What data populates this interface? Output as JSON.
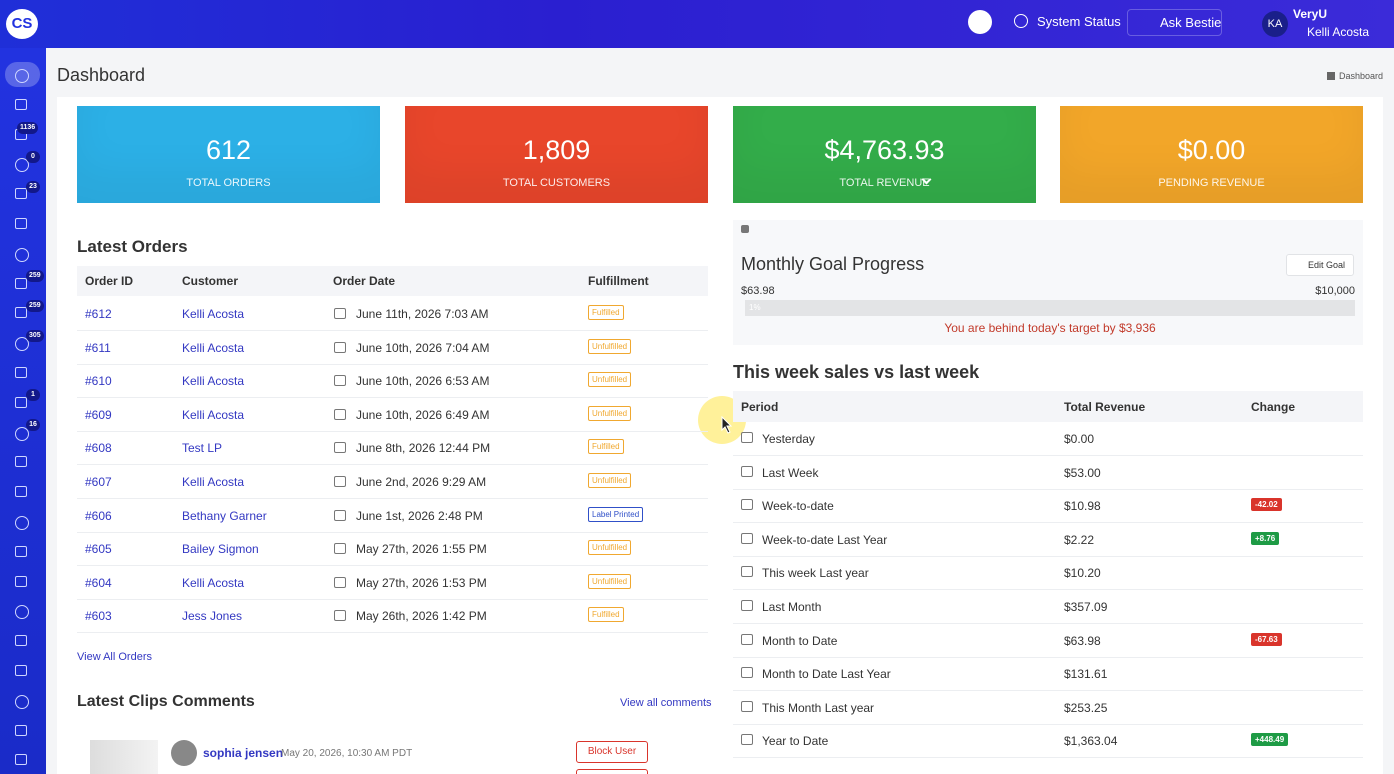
{
  "header": {
    "logo": "CS",
    "system_status": "System Status",
    "ask_bestie": "Ask Bestie",
    "avatar": "KA",
    "org": "VeryU",
    "user": "Kelli Acosta"
  },
  "sidebar": {
    "badges": [
      1136,
      0,
      23,
      259,
      259,
      305,
      1,
      16
    ]
  },
  "page": {
    "title": "Dashboard",
    "breadcrumb": "Dashboard"
  },
  "stats": [
    {
      "value": "612",
      "label": "TOTAL ORDERS",
      "color": "#2cb0e6"
    },
    {
      "value": "1,809",
      "label": "TOTAL CUSTOMERS",
      "color": "#e8462b"
    },
    {
      "value": "$4,763.93",
      "label": "TOTAL REVENUE",
      "color": "#33ad4a"
    },
    {
      "value": "$0.00",
      "label": "PENDING REVENUE",
      "color": "#f2a629"
    }
  ],
  "orders": {
    "title": "Latest Orders",
    "columns": [
      "Order ID",
      "Customer",
      "Order Date",
      "Fulfillment"
    ],
    "rows": [
      {
        "id": "#612",
        "customer": "Kelli Acosta",
        "date": "June 11th, 2026 7:03 AM",
        "status": "Fulfilled",
        "color": "#f0a830"
      },
      {
        "id": "#611",
        "customer": "Kelli Acosta",
        "date": "June 10th, 2026 7:04 AM",
        "status": "Unfulfilled",
        "color": "#f0a830"
      },
      {
        "id": "#610",
        "customer": "Kelli Acosta",
        "date": "June 10th, 2026 6:53 AM",
        "status": "Unfulfilled",
        "color": "#f0a830"
      },
      {
        "id": "#609",
        "customer": "Kelli Acosta",
        "date": "June 10th, 2026 6:49 AM",
        "status": "Unfulfilled",
        "color": "#f0a830"
      },
      {
        "id": "#608",
        "customer": "Test LP",
        "date": "June 8th, 2026 12:44 PM",
        "status": "Fulfilled",
        "color": "#f0a830"
      },
      {
        "id": "#607",
        "customer": "Kelli Acosta",
        "date": "June 2nd, 2026 9:29 AM",
        "status": "Unfulfilled",
        "color": "#f0a830"
      },
      {
        "id": "#606",
        "customer": "Bethany Garner",
        "date": "June 1st, 2026 2:48 PM",
        "status": "Label Printed",
        "color": "#3050c8"
      },
      {
        "id": "#605",
        "customer": "Bailey Sigmon",
        "date": "May 27th, 2026 1:55 PM",
        "status": "Unfulfilled",
        "color": "#f0a830"
      },
      {
        "id": "#604",
        "customer": "Kelli Acosta",
        "date": "May 27th, 2026 1:53 PM",
        "status": "Unfulfilled",
        "color": "#f0a830"
      },
      {
        "id": "#603",
        "customer": "Jess Jones",
        "date": "May 26th, 2026 1:42 PM",
        "status": "Fulfilled",
        "color": "#f0a830"
      }
    ],
    "link": "View All Orders"
  },
  "comments": {
    "title": "Latest Clips Comments",
    "link": "View all comments",
    "items": [
      {
        "name": "sophia jensen",
        "date": "May 20, 2026, 10:30 AM PDT",
        "button": "Block User"
      }
    ]
  },
  "goal": {
    "title": "Monthly Goal Progress",
    "button": "Edit Goal",
    "current": "$63.98",
    "target": "$10,000",
    "bar_label": "1%",
    "message": "You are behind today's target by $3,936"
  },
  "week": {
    "title": "This week sales vs last week",
    "columns": [
      "Period",
      "Total Revenue",
      "Change"
    ],
    "rows": [
      {
        "period": "Yesterday",
        "revenue": "$0.00",
        "change": null
      },
      {
        "period": "Last Week",
        "revenue": "$53.00",
        "change": null
      },
      {
        "period": "Week-to-date",
        "revenue": "$10.98",
        "change": {
          "text": "-42.02",
          "color": "#d9342b"
        }
      },
      {
        "period": "Week-to-date Last Year",
        "revenue": "$2.22",
        "change": {
          "text": "+8.76",
          "color": "#1e9b45"
        }
      },
      {
        "period": "This week Last year",
        "revenue": "$10.20",
        "change": null
      },
      {
        "period": "Last Month",
        "revenue": "$357.09",
        "change": null
      },
      {
        "period": "Month to Date",
        "revenue": "$63.98",
        "change": {
          "text": "-67.63",
          "color": "#d9342b"
        }
      },
      {
        "period": "Month to Date Last Year",
        "revenue": "$131.61",
        "change": null
      },
      {
        "period": "This Month Last year",
        "revenue": "$253.25",
        "change": null
      },
      {
        "period": "Year to Date",
        "revenue": "$1,363.04",
        "change": {
          "text": "+448.49",
          "color": "#1e9b45"
        }
      }
    ]
  }
}
